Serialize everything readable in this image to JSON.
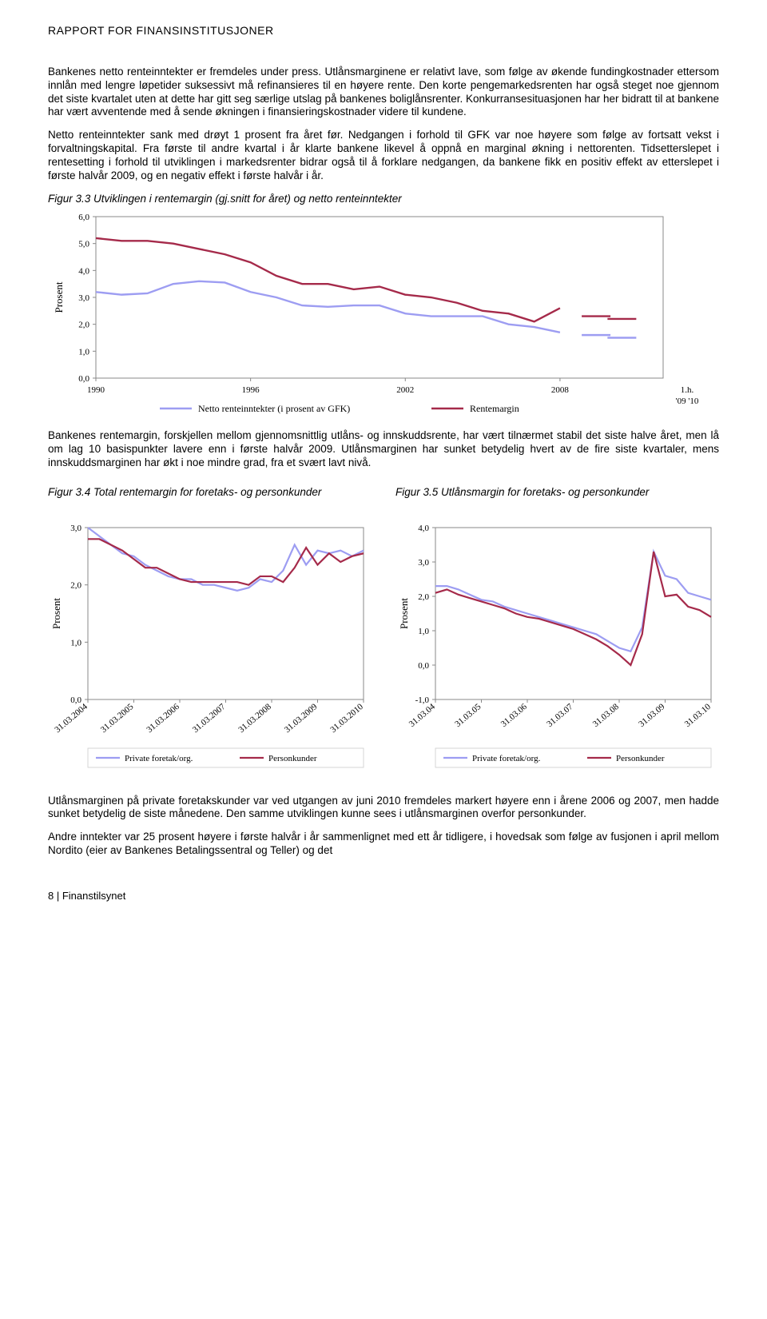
{
  "header": {
    "title": "RAPPORT FOR FINANSINSTITUSJONER"
  },
  "paragraphs": {
    "p1": "Bankenes netto renteinntekter er fremdeles under press. Utlånsmarginene er relativt lave, som følge av økende fundingkostnader ettersom innlån med lengre løpetider suksessivt må refinansieres til en høyere rente. Den korte pengemarkedsrenten har også steget noe gjennom det siste kvartalet uten at dette har gitt seg særlige utslag på bankenes boliglånsrenter. Konkurransesituasjonen har her bidratt til at bankene har vært avventende med å sende økningen i finansieringskostnader videre til kundene.",
    "p2": "Netto renteinntekter sank med drøyt 1 prosent fra året før. Nedgangen i forhold til GFK var noe høyere som følge av fortsatt vekst i forvaltningskapital. Fra første til andre kvartal i år klarte bankene likevel å oppnå en marginal økning i nettorenten. Tidsetterslepet i rentesetting i forhold til utviklingen i markedsrenter bidrar også til å forklare nedgangen, da bankene fikk en positiv effekt av etterslepet i første halvår 2009, og en negativ effekt i første halvår i år.",
    "p3": "Bankenes rentemargin, forskjellen mellom gjennomsnittlig utlåns- og innskuddsrente, har vært tilnærmet stabil det siste halve året, men lå om lag 10 basispunkter lavere enn i første halvår 2009. Utlånsmarginen har sunket betydelig hvert av de fire siste kvartaler, mens innskuddsmarginen har økt i noe mindre grad, fra et svært lavt nivå.",
    "p4": "Utlånsmarginen på private foretakskunder var ved utgangen av juni 2010 fremdeles markert høyere enn i årene 2006 og 2007, men hadde sunket betydelig de siste månedene. Den samme utviklingen kunne sees i utlånsmarginen overfor personkunder.",
    "p5": "Andre inntekter var 25 prosent høyere i første halvår i år sammenlignet med ett år tidligere, i hovedsak som følge av fusjonen i april mellom Nordito (eier av Bankenes Betalingssentral og Teller) og det"
  },
  "fig33": {
    "caption": "Figur 3.3  Utviklingen i rentemargin (gj.snitt for året)  og netto renteinntekter",
    "ylabel": "Prosent",
    "yticks": [
      "0,0",
      "1,0",
      "2,0",
      "3,0",
      "4,0",
      "5,0",
      "6,0"
    ],
    "ylim": [
      0,
      6
    ],
    "xticks": [
      "1990",
      "1996",
      "2002",
      "2008"
    ],
    "xlim": [
      1990,
      2012
    ],
    "right_label_top": "1.h.",
    "right_label_bottom": "'09  '10",
    "legend": [
      "Netto renteinntekter (i prosent av GFK)",
      "Rentemargin"
    ],
    "series_netto": {
      "color": "#9d9df2",
      "width": 2.4,
      "years": [
        1990,
        1991,
        1992,
        1993,
        1994,
        1995,
        1996,
        1997,
        1998,
        1999,
        2000,
        2001,
        2002,
        2003,
        2004,
        2005,
        2006,
        2007,
        2008
      ],
      "values": [
        3.2,
        3.1,
        3.15,
        3.5,
        3.6,
        3.55,
        3.2,
        3.0,
        2.7,
        2.65,
        2.7,
        2.7,
        2.4,
        2.3,
        2.3,
        2.3,
        2.0,
        1.9,
        1.7
      ],
      "h09": 1.6,
      "h10": 1.5
    },
    "series_rente": {
      "color": "#a52a4a",
      "width": 2.4,
      "years": [
        1990,
        1991,
        1992,
        1993,
        1994,
        1995,
        1996,
        1997,
        1998,
        1999,
        2000,
        2001,
        2002,
        2003,
        2004,
        2005,
        2006,
        2007,
        2008
      ],
      "values": [
        5.2,
        5.1,
        5.1,
        5.0,
        4.8,
        4.6,
        4.3,
        3.8,
        3.5,
        3.5,
        3.3,
        3.4,
        3.1,
        3.0,
        2.8,
        2.5,
        2.4,
        2.1,
        2.6
      ],
      "h09": 2.3,
      "h10": 2.2
    }
  },
  "fig34": {
    "caption": "Figur 3.4 Total rentemargin for foretaks- og personkunder",
    "ylabel": "Prosent",
    "yticks": [
      "0,0",
      "1,0",
      "2,0",
      "3,0"
    ],
    "ylim": [
      0,
      3
    ],
    "xticks": [
      "31.03.2004",
      "31.03.2005",
      "31.03.2006",
      "31.03.2007",
      "31.03.2008",
      "31.03.2009",
      "31.03.2010"
    ],
    "legend": [
      "Private foretak/org.",
      "Personkunder"
    ],
    "series_private": {
      "color": "#9d9df2",
      "width": 2.2,
      "values": [
        3.0,
        2.85,
        2.7,
        2.55,
        2.5,
        2.35,
        2.25,
        2.15,
        2.1,
        2.1,
        2.0,
        2.0,
        1.95,
        1.9,
        1.95,
        2.1,
        2.05,
        2.25,
        2.7,
        2.35,
        2.6,
        2.55,
        2.6,
        2.5,
        2.6
      ]
    },
    "series_person": {
      "color": "#a52a4a",
      "width": 2.2,
      "values": [
        2.8,
        2.8,
        2.7,
        2.6,
        2.45,
        2.3,
        2.3,
        2.2,
        2.1,
        2.05,
        2.05,
        2.05,
        2.05,
        2.05,
        2.0,
        2.15,
        2.15,
        2.05,
        2.3,
        2.65,
        2.35,
        2.55,
        2.4,
        2.5,
        2.55
      ]
    }
  },
  "fig35": {
    "caption": "Figur 3.5  Utlånsmargin for foretaks- og personkunder",
    "ylabel": "Prosent",
    "yticks": [
      "-1,0",
      "0,0",
      "1,0",
      "2,0",
      "3,0",
      "4,0"
    ],
    "ylim": [
      -1,
      4
    ],
    "xticks": [
      "31.03.04",
      "31.03.05",
      "31.03.06",
      "31.03.07",
      "31.03.08",
      "31.03.09",
      "31.03.10"
    ],
    "legend": [
      "Private foretak/org.",
      "Personkunder"
    ],
    "series_private": {
      "color": "#9d9df2",
      "width": 2.2,
      "values": [
        2.3,
        2.3,
        2.2,
        2.05,
        1.9,
        1.85,
        1.7,
        1.6,
        1.5,
        1.4,
        1.3,
        1.2,
        1.1,
        1.0,
        0.9,
        0.7,
        0.5,
        0.4,
        1.1,
        3.3,
        2.6,
        2.5,
        2.1,
        2.0,
        1.9
      ]
    },
    "series_person": {
      "color": "#a52a4a",
      "width": 2.2,
      "values": [
        2.1,
        2.2,
        2.05,
        1.95,
        1.85,
        1.75,
        1.65,
        1.5,
        1.4,
        1.35,
        1.25,
        1.15,
        1.05,
        0.9,
        0.75,
        0.55,
        0.3,
        0.0,
        0.9,
        3.3,
        2.0,
        2.05,
        1.7,
        1.6,
        1.4
      ]
    }
  },
  "footer": {
    "text": "8 | Finanstilsynet"
  }
}
